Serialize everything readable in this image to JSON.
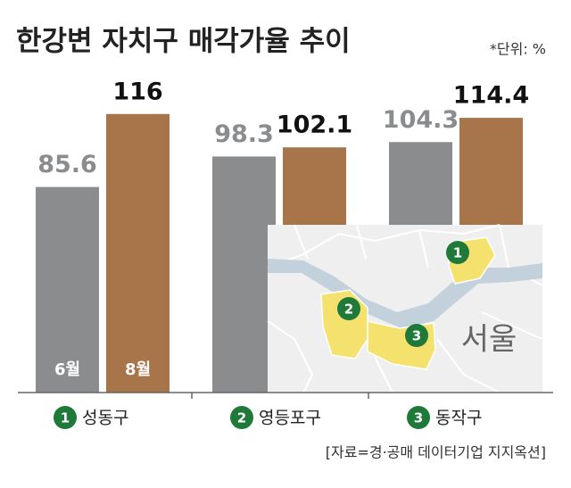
{
  "chart_data": {
    "type": "bar",
    "title": "한강변 자치구 매각가율 추이",
    "unit_note": "*단위: %",
    "categories": [
      "성동구",
      "영등포구",
      "동작구"
    ],
    "category_numbers": [
      "1",
      "2",
      "3"
    ],
    "series": [
      {
        "name": "6월",
        "color": "#8b8c8e",
        "values": [
          85.6,
          98.3,
          104.3
        ]
      },
      {
        "name": "8월",
        "color": "#a8744a",
        "values": [
          116,
          102.1,
          114.4
        ]
      }
    ],
    "ylim": [
      0,
      120
    ],
    "map_label": "서울",
    "source": "[자료=경·공매 데이터기업 지지옥션]"
  }
}
